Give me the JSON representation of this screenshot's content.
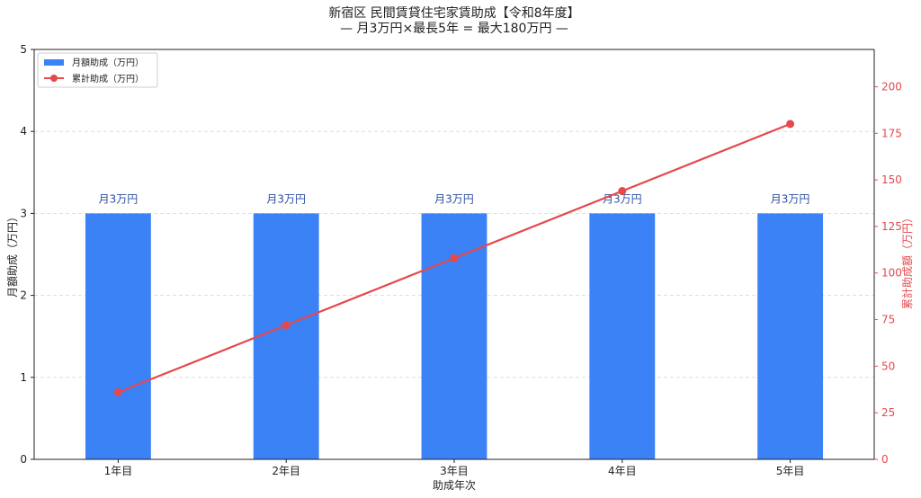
{
  "chart_data": {
    "type": "bar",
    "title_line1": "新宿区 民間賃貸住宅家賃助成【令和8年度】",
    "title_line2": "— 月3万円×最長5年 = 最大180万円 —",
    "xlabel": "助成年次",
    "ylabel": "月額助成（万円）",
    "ylabel_right": "累計助成額（万円）",
    "categories": [
      "1年目",
      "2年目",
      "3年目",
      "4年目",
      "5年目"
    ],
    "ylim": [
      0,
      5
    ],
    "ylim_right": [
      0,
      220
    ],
    "yticks": [
      0,
      1,
      2,
      3,
      4,
      5
    ],
    "yticks_right": [
      0,
      25,
      50,
      75,
      100,
      125,
      150,
      175,
      200
    ],
    "grid": true,
    "legend_position": "top-left",
    "series": [
      {
        "name": "月額助成（万円）",
        "kind": "bar",
        "axis": "left",
        "values": [
          3,
          3,
          3,
          3,
          3
        ],
        "labels": [
          "月3万円",
          "月3万円",
          "月3万円",
          "月3万円",
          "月3万円"
        ],
        "color": "#3b82f6"
      },
      {
        "name": "累計助成（万円）",
        "kind": "line",
        "axis": "right",
        "values": [
          36,
          72,
          108,
          144,
          180
        ],
        "color": "#e5484d"
      }
    ],
    "colors": {
      "bar_label": "#2b4fa3",
      "right_axis": "#e5484d",
      "grid": "#cccccc"
    }
  }
}
